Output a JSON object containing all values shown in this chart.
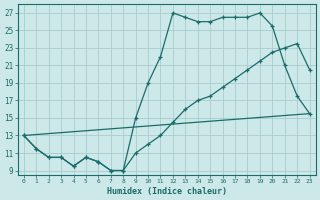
{
  "background_color": "#cde8e8",
  "grid_color": "#aacccc",
  "line_color": "#1a6b6b",
  "marker": "+",
  "xlabel": "Humidex (Indice chaleur)",
  "xlim": [
    -0.5,
    23.5
  ],
  "ylim": [
    8.5,
    28
  ],
  "xticks": [
    0,
    1,
    2,
    3,
    4,
    5,
    6,
    7,
    8,
    9,
    10,
    11,
    12,
    13,
    14,
    15,
    16,
    17,
    18,
    19,
    20,
    21,
    22,
    23
  ],
  "yticks": [
    9,
    11,
    13,
    15,
    17,
    19,
    21,
    23,
    25,
    27
  ],
  "line1_x": [
    0,
    1,
    2,
    3,
    4,
    5,
    6,
    7,
    8,
    9,
    10,
    11,
    12,
    13,
    14,
    15,
    16,
    17,
    18,
    19,
    20,
    21,
    22,
    23
  ],
  "line1_y": [
    13,
    11.5,
    10.5,
    10.5,
    9.5,
    10.5,
    10,
    9,
    9,
    15,
    19,
    22,
    27,
    26.5,
    26,
    26,
    26.5,
    26.5,
    26.5,
    27,
    25.5,
    21,
    17.5,
    15.5
  ],
  "line2_x": [
    0,
    1,
    2,
    3,
    4,
    5,
    6,
    7,
    8,
    9,
    10,
    11,
    12,
    13,
    14,
    15,
    16,
    17,
    18,
    19,
    20,
    21,
    22,
    23
  ],
  "line2_y": [
    13,
    11.5,
    10.5,
    10.5,
    9.5,
    10.5,
    10,
    9,
    9,
    11,
    12,
    13,
    14.5,
    16,
    17,
    17.5,
    18.5,
    19.5,
    20.5,
    21.5,
    22.5,
    23,
    23.5,
    20.5
  ],
  "line3_x": [
    0,
    23
  ],
  "line3_y": [
    13,
    15.5
  ]
}
